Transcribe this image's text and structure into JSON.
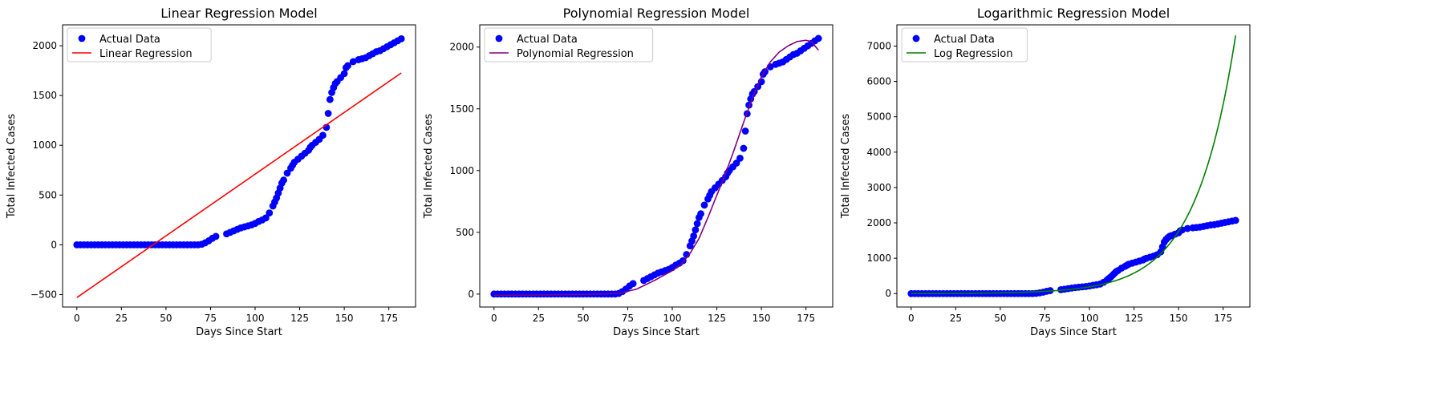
{
  "chart_data": [
    {
      "type": "scatter",
      "title": "Linear Regression Model",
      "xlabel": "Days Since Start",
      "ylabel": "Total Infected Cases",
      "xlim": [
        -8,
        190
      ],
      "ylim": [
        -625,
        2210
      ],
      "xticks": [
        0,
        25,
        50,
        75,
        100,
        125,
        150,
        175
      ],
      "yticks": [
        -500,
        0,
        500,
        1000,
        1500,
        2000
      ],
      "legend": "upper-left",
      "series": [
        {
          "name": "Actual Data",
          "kind": "scatter",
          "color": "#0000ff",
          "x": "shared",
          "y": "shared"
        },
        {
          "name": "Linear Regression",
          "kind": "line",
          "color": "#ff0000",
          "model": "linear",
          "params": [
            -530,
            12.4
          ]
        }
      ]
    },
    {
      "type": "scatter",
      "title": "Polynomial Regression Model",
      "xlabel": "Days Since Start",
      "ylabel": "Total Infected Cases",
      "xlim": [
        -8,
        190
      ],
      "ylim": [
        -105,
        2180
      ],
      "xticks": [
        0,
        25,
        50,
        75,
        100,
        125,
        150,
        175
      ],
      "yticks": [
        0,
        500,
        1000,
        1500,
        2000
      ],
      "legend": "upper-left",
      "series": [
        {
          "name": "Actual Data",
          "kind": "scatter",
          "color": "#0000ff",
          "x": "shared",
          "y": "shared"
        },
        {
          "name": "Polynomial Regression",
          "kind": "line",
          "color": "#800080",
          "model": "polynomial",
          "points": [
            [
              0,
              -10
            ],
            [
              20,
              -8
            ],
            [
              40,
              -5
            ],
            [
              60,
              0
            ],
            [
              70,
              5
            ],
            [
              80,
              40
            ],
            [
              90,
              110
            ],
            [
              100,
              190
            ],
            [
              105,
              240
            ],
            [
              110,
              330
            ],
            [
              115,
              450
            ],
            [
              120,
              620
            ],
            [
              125,
              800
            ],
            [
              130,
              980
            ],
            [
              135,
              1180
            ],
            [
              140,
              1390
            ],
            [
              145,
              1590
            ],
            [
              150,
              1760
            ],
            [
              155,
              1880
            ],
            [
              160,
              1960
            ],
            [
              165,
              2010
            ],
            [
              170,
              2045
            ],
            [
              175,
              2055
            ],
            [
              178,
              2045
            ],
            [
              182,
              1975
            ]
          ]
        }
      ]
    },
    {
      "type": "scatter",
      "title": "Logarithmic Regression Model",
      "xlabel": "Days Since Start",
      "ylabel": "Total Infected Cases",
      "xlim": [
        -8,
        190
      ],
      "ylim": [
        -380,
        7600
      ],
      "xticks": [
        0,
        25,
        50,
        75,
        100,
        125,
        150,
        175
      ],
      "yticks": [
        0,
        1000,
        2000,
        3000,
        4000,
        5000,
        6000,
        7000
      ],
      "legend": "upper-left",
      "series": [
        {
          "name": "Actual Data",
          "kind": "scatter",
          "color": "#0000ff",
          "x": "shared",
          "y": "shared"
        },
        {
          "name": "Log Regression",
          "kind": "line",
          "color": "#008000",
          "model": "exponential",
          "params": [
            7300,
            182,
            22.5
          ]
        }
      ]
    }
  ],
  "actual_data": {
    "x": [
      0,
      2,
      4,
      6,
      8,
      10,
      12,
      14,
      16,
      18,
      20,
      22,
      24,
      26,
      28,
      30,
      32,
      34,
      36,
      38,
      40,
      42,
      44,
      46,
      48,
      50,
      52,
      54,
      56,
      58,
      60,
      62,
      64,
      66,
      68,
      70,
      72,
      74,
      76,
      78,
      84,
      86,
      88,
      90,
      92,
      94,
      96,
      98,
      100,
      102,
      104,
      106,
      108,
      110,
      111,
      112,
      113,
      114,
      115,
      116,
      118,
      120,
      121,
      122,
      124,
      126,
      128,
      130,
      131,
      132,
      134,
      136,
      138,
      140,
      141,
      142,
      143,
      144,
      145,
      146,
      148,
      150,
      151,
      152,
      155,
      158,
      160,
      162,
      164,
      166,
      168,
      170,
      172,
      174,
      176,
      178,
      180,
      182
    ],
    "y": [
      0,
      0,
      0,
      0,
      0,
      0,
      0,
      0,
      0,
      0,
      0,
      0,
      0,
      0,
      0,
      0,
      0,
      0,
      0,
      0,
      0,
      0,
      0,
      0,
      0,
      0,
      0,
      0,
      0,
      0,
      0,
      0,
      0,
      0,
      0,
      5,
      20,
      40,
      65,
      85,
      110,
      125,
      140,
      155,
      170,
      180,
      190,
      200,
      215,
      235,
      250,
      270,
      320,
      390,
      430,
      470,
      520,
      570,
      620,
      650,
      720,
      770,
      800,
      830,
      860,
      890,
      920,
      950,
      980,
      1000,
      1030,
      1060,
      1100,
      1180,
      1320,
      1460,
      1530,
      1580,
      1620,
      1640,
      1680,
      1720,
      1780,
      1800,
      1840,
      1860,
      1870,
      1880,
      1900,
      1920,
      1940,
      1950,
      1970,
      1990,
      2010,
      2030,
      2050,
      2070
    ]
  },
  "legend_labels": {
    "actual": "Actual Data"
  }
}
